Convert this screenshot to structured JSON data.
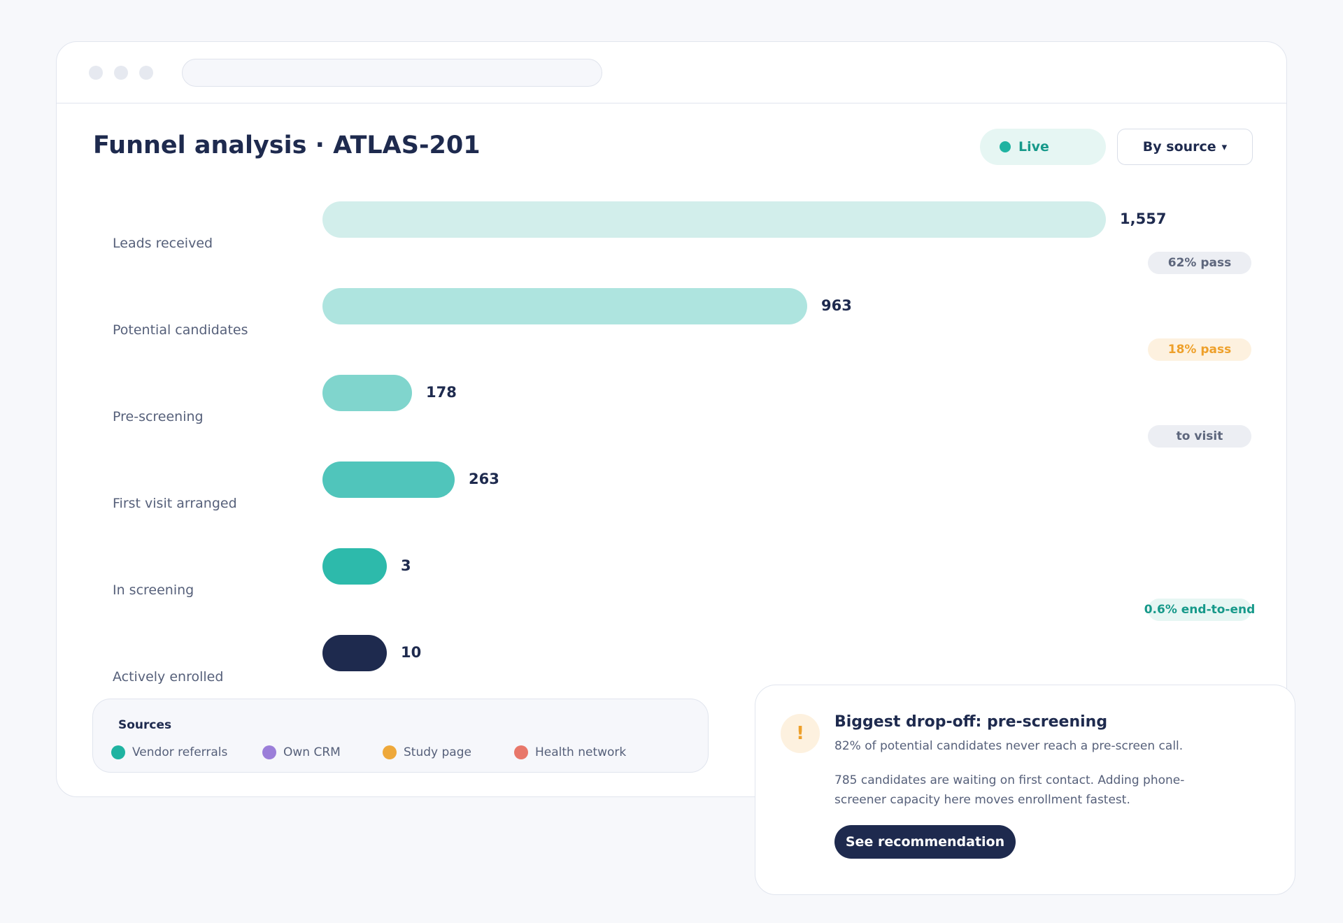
{
  "header": {
    "title": "Funnel analysis · ATLAS-201",
    "live_label": "Live",
    "source_button_label": "By source",
    "source_button_icon": "chevron-down-icon"
  },
  "funnel": {
    "max_value": 1557,
    "stages": [
      {
        "label": "Leads received",
        "value": 1557,
        "display": "1,557",
        "color": "#d2eeeb"
      },
      {
        "label": "Potential candidates",
        "value": 963,
        "display": "963",
        "color": "#aee4df"
      },
      {
        "label": "Pre-screening",
        "value": 178,
        "display": "178",
        "color": "#80d5cd"
      },
      {
        "label": "First visit arranged",
        "value": 263,
        "display": "263",
        "color": "#50c5bb"
      },
      {
        "label": "In screening",
        "value": 3,
        "display": "3",
        "color": "#2dbaab"
      },
      {
        "label": "Actively enrolled",
        "value": 10,
        "display": "10",
        "color": "#1e2a4e"
      }
    ],
    "chips": [
      {
        "text": "62% pass",
        "style": "grey"
      },
      {
        "text": "18% pass",
        "style": "amber"
      },
      {
        "text": "to visit",
        "style": "grey"
      },
      {
        "text": "0.6% end-to-end",
        "style": "teal"
      }
    ]
  },
  "sources": {
    "title": "Sources",
    "items": [
      {
        "label": "Vendor referrals",
        "color": "#1fb3a1"
      },
      {
        "label": "Own CRM",
        "color": "#9b7ed9"
      },
      {
        "label": "Study page",
        "color": "#eea83a"
      },
      {
        "label": "Health network",
        "color": "#e8776a"
      }
    ]
  },
  "alert": {
    "icon": "warning-icon",
    "icon_glyph": "!",
    "title": "Biggest drop-off: pre-screening",
    "subtitle": "82% of potential candidates never reach a pre-screen call.",
    "body": "785 candidates are waiting on first contact. Adding phone-screener capacity here moves enrollment fastest.",
    "button_label": "See recommendation"
  },
  "colors": {
    "accent": "#1fb3a1",
    "navy": "#1e2a4e",
    "warning": "#eea02a"
  }
}
